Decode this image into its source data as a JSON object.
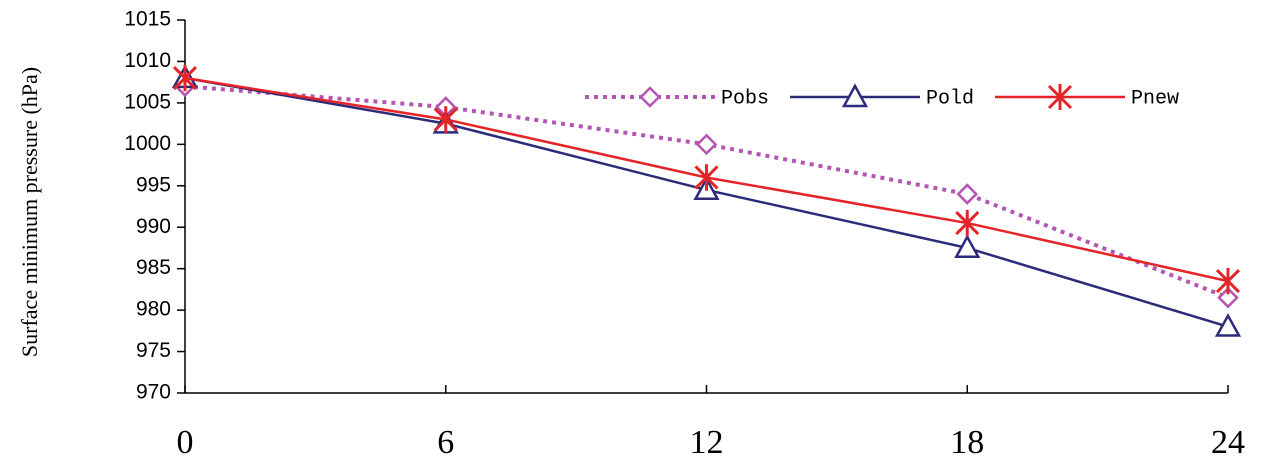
{
  "chart_data": {
    "type": "line",
    "y_label": "Surface minimum pressure (hPa)",
    "x": [
      0,
      6,
      12,
      18,
      24
    ],
    "xlim": [
      0,
      24
    ],
    "xticks": [
      0,
      6,
      12,
      18,
      24
    ],
    "ylim": [
      970,
      1015
    ],
    "yticks": [
      970,
      975,
      980,
      985,
      990,
      995,
      1000,
      1005,
      1010,
      1015
    ],
    "legend": "top-right",
    "series": [
      {
        "name": "Pobs",
        "color": "#b455b4",
        "values": [
          1007,
          1004.5,
          1000,
          994,
          981.5
        ]
      },
      {
        "name": "Pold",
        "color": "#2b2b7a",
        "values": [
          1008,
          1002.5,
          994.5,
          987.5,
          978
        ]
      },
      {
        "name": "Pnew",
        "color": "#e52428",
        "values": [
          1008,
          1003,
          996,
          990.5,
          983.5
        ]
      }
    ]
  }
}
